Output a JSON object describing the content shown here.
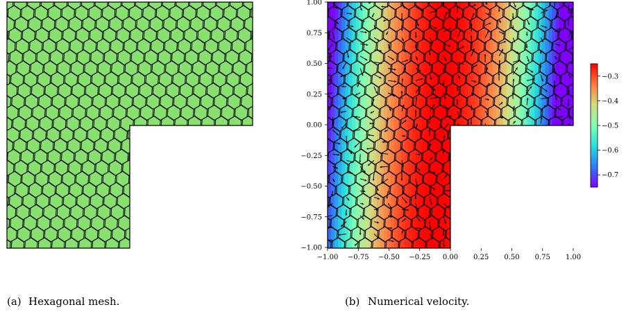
{
  "chart_data": [
    {
      "type": "mesh",
      "panel_label": "(a)",
      "caption": "Hexagonal mesh.",
      "domain": "L-shaped",
      "fill_color": "#88e06f",
      "edge_color": "#000000"
    },
    {
      "type": "heatmap",
      "panel_label": "(b)",
      "caption": "Numerical velocity.",
      "domain": "L-shaped",
      "xlim": [
        -1.0,
        1.0
      ],
      "ylim": [
        -1.0,
        1.0
      ],
      "x_ticks": [
        "−1.00",
        "−0.75",
        "−0.50",
        "−0.25",
        "0.00",
        "0.25",
        "0.50",
        "0.75",
        "1.00"
      ],
      "y_ticks": [
        "−1.00",
        "−0.75",
        "−0.50",
        "−0.25",
        "0.00",
        "0.25",
        "0.50",
        "0.75",
        "1.00"
      ],
      "colorbar": {
        "min": -0.75,
        "max": -0.25,
        "ticks": [
          "−0.3",
          "−0.4",
          "−0.5",
          "−0.6",
          "−0.7"
        ],
        "tick_values": [
          -0.3,
          -0.4,
          -0.5,
          -0.6,
          -0.7
        ],
        "colormap": "rainbow"
      },
      "overlay": "velocity arrows"
    }
  ]
}
